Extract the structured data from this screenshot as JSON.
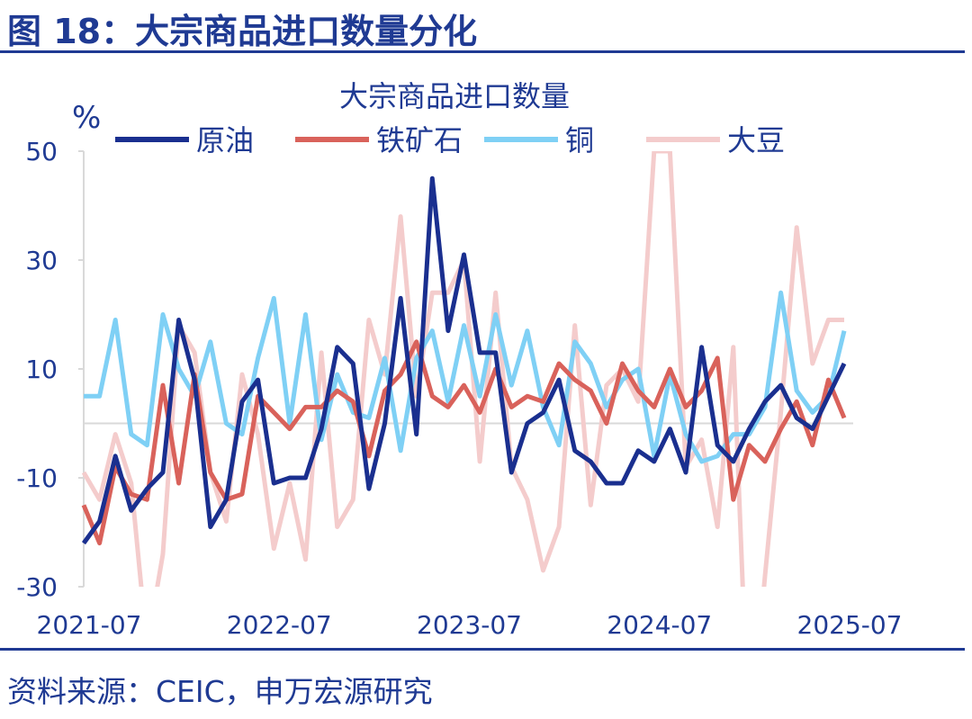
{
  "figure_title": "图 18：大宗商品进口数量分化",
  "source": "资料来源：CEIC，申万宏源研究",
  "colors": {
    "accent": "#1f3a93"
  },
  "chart_data": {
    "type": "line",
    "title": "大宗商品进口数量",
    "ylabel": "%",
    "ylim": [
      -30,
      50
    ],
    "yticks": [
      50,
      30,
      10,
      -10,
      -30
    ],
    "xlabel": "",
    "x_tick_labels": [
      "2021-07",
      "2022-07",
      "2023-07",
      "2024-07",
      "2025-07"
    ],
    "x_tick_index": [
      0,
      12,
      24,
      36,
      48
    ],
    "x": [
      "2021-07",
      "2021-08",
      "2021-09",
      "2021-10",
      "2021-11",
      "2021-12",
      "2022-01",
      "2022-02",
      "2022-03",
      "2022-04",
      "2022-05",
      "2022-06",
      "2022-07",
      "2022-08",
      "2022-09",
      "2022-10",
      "2022-11",
      "2022-12",
      "2023-01",
      "2023-02",
      "2023-03",
      "2023-04",
      "2023-05",
      "2023-06",
      "2023-07",
      "2023-08",
      "2023-09",
      "2023-10",
      "2023-11",
      "2023-12",
      "2024-01",
      "2024-02",
      "2024-03",
      "2024-04",
      "2024-05",
      "2024-06",
      "2024-07",
      "2024-08",
      "2024-09",
      "2024-10",
      "2024-11",
      "2024-12",
      "2025-01",
      "2025-02",
      "2025-03",
      "2025-04",
      "2025-05",
      "2025-06",
      "2025-07"
    ],
    "grid": false,
    "legend_position": "top",
    "series": [
      {
        "name": "原油",
        "color": "#1a2f8f",
        "values": [
          -22,
          -18,
          -6,
          -16,
          -12,
          -9,
          19,
          8,
          -19,
          -14,
          4,
          8,
          -11,
          -10,
          -10,
          -1,
          14,
          11,
          -12,
          0,
          23,
          -2,
          45,
          17,
          31,
          13,
          13,
          -9,
          0,
          2,
          8,
          -5,
          -7,
          -11,
          -11,
          -5,
          -7,
          -1,
          -9,
          14,
          -4,
          -7,
          -1,
          4,
          7,
          1,
          -1,
          5,
          11
        ]
      },
      {
        "name": "铁矿石",
        "color": "#d9625b",
        "values": [
          -15,
          -22,
          -8,
          -13,
          -14,
          7,
          -11,
          9,
          -9,
          -14,
          -13,
          5,
          2,
          -1,
          3,
          3,
          6,
          4,
          -6,
          6,
          9,
          15,
          5,
          3,
          7,
          2,
          10,
          3,
          5,
          4,
          11,
          8,
          6,
          0,
          11,
          6,
          3,
          10,
          3,
          6,
          12,
          -14,
          -4,
          -7,
          -1,
          4,
          -4,
          8,
          1
        ]
      },
      {
        "name": "铜",
        "color": "#7fd0f5",
        "values": [
          5,
          5,
          19,
          -2,
          -4,
          20,
          10,
          5,
          15,
          0,
          -2,
          12,
          23,
          0,
          20,
          -3,
          9,
          2,
          1,
          12,
          -5,
          12,
          17,
          4,
          18,
          5,
          20,
          7,
          17,
          3,
          -4,
          15,
          11,
          3,
          8,
          10,
          -6,
          9,
          -2,
          -7,
          -6,
          -2,
          -2,
          3,
          24,
          6,
          2,
          5,
          17
        ]
      },
      {
        "name": "大豆",
        "color": "#f4cccc",
        "values": [
          -9,
          -14,
          -2,
          -11,
          -41,
          -24,
          18,
          13,
          -9,
          -18,
          9,
          -2,
          -23,
          -11,
          -25,
          13,
          -19,
          -14,
          19,
          9,
          38,
          5,
          24,
          24,
          30,
          -7,
          24,
          -8,
          -14,
          -27,
          -19,
          18,
          -15,
          7,
          10,
          4,
          50,
          50,
          -8,
          -3,
          -19,
          14,
          -60,
          -28,
          2,
          36,
          11,
          19,
          19
        ]
      }
    ]
  }
}
